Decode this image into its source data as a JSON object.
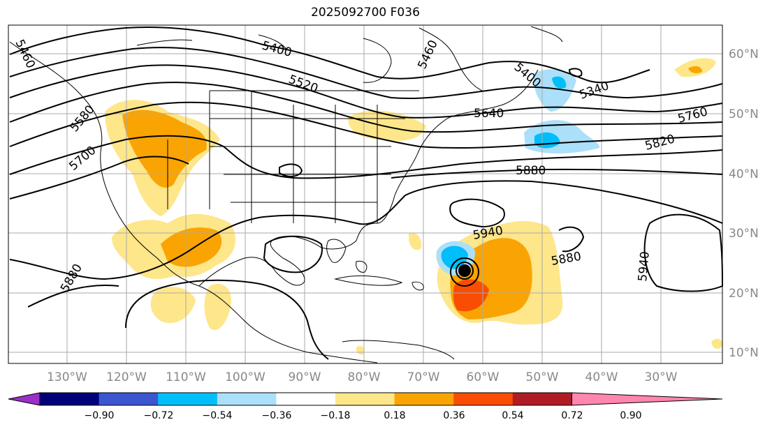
{
  "title": "2025092700 F036",
  "colors": {
    "ocean": "#ffffff",
    "coast": "#000000",
    "grid": "#aaaaaa",
    "contour": "#000000",
    "pos_018": "#fee68a",
    "pos_036": "#f9a402",
    "pos_054": "#f84d03",
    "neg_018": "#acdff9",
    "neg_036": "#00bef9",
    "neg_054": "#3a56d1"
  },
  "lon_labels": [
    "130°W",
    "120°W",
    "110°W",
    "100°W",
    "90°W",
    "80°W",
    "70°W",
    "60°W",
    "50°W",
    "40°W",
    "30°W"
  ],
  "lat_labels": [
    "60°N",
    "50°N",
    "40°N",
    "30°N",
    "20°N",
    "10°N"
  ],
  "contour_labels": [
    "5400",
    "5520",
    "5640",
    "5700",
    "5580",
    "5460",
    "5400",
    "5340",
    "5760",
    "5820",
    "5880",
    "5940",
    "5880",
    "5880",
    "5940",
    "5460"
  ],
  "colorbar": {
    "colors": [
      "#9b30c8",
      "#00007a",
      "#3a56d1",
      "#00bef9",
      "#acdff9",
      "#ffffff",
      "#fee68a",
      "#f9a402",
      "#f84d03",
      "#b11c24",
      "#fe86b1"
    ],
    "ticks": [
      "−0.90",
      "−0.72",
      "−0.54",
      "−0.36",
      "−0.18",
      "0.18",
      "0.36",
      "0.54",
      "0.72",
      "0.90"
    ]
  }
}
